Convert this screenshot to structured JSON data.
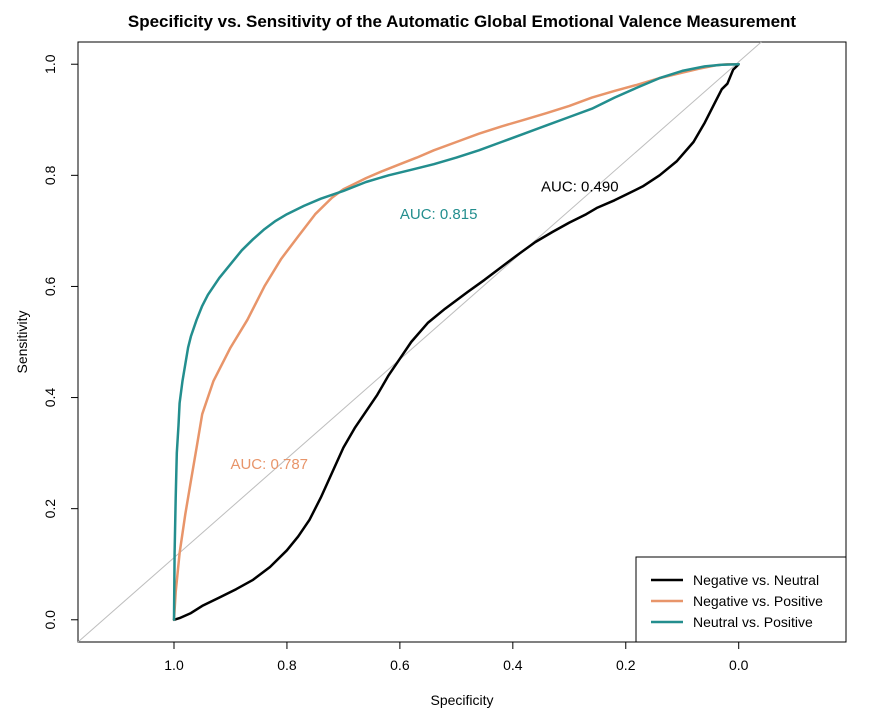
{
  "chart_data": {
    "type": "line",
    "title": "Specificity vs. Sensitivity of the Automatic Global Emotional Valence Measurement",
    "xlabel": "Specificity",
    "ylabel": "Sensitivity",
    "x_reversed": true,
    "xlim": [
      1.17,
      -0.19
    ],
    "ylim": [
      -0.04,
      1.04
    ],
    "x_ticks": [
      1.0,
      0.8,
      0.6,
      0.4,
      0.2,
      0.0
    ],
    "x_tick_labels": [
      "1.0",
      "0.8",
      "0.6",
      "0.4",
      "0.2",
      "0.0"
    ],
    "y_ticks": [
      0.0,
      0.2,
      0.4,
      0.6,
      0.8,
      1.0
    ],
    "y_tick_labels": [
      "0.0",
      "0.2",
      "0.4",
      "0.6",
      "0.8",
      "1.0"
    ],
    "grid": false,
    "reference_line": {
      "type": "diagonal",
      "color": "#bebebe"
    },
    "legend_position": "bottom-right",
    "series": [
      {
        "name": "Negative vs. Neutral",
        "color": "#000000",
        "auc_label": "AUC: 0.490",
        "auc_label_pos": [
          0.35,
          0.78
        ],
        "specificity": [
          1.0,
          0.99,
          0.97,
          0.95,
          0.92,
          0.89,
          0.86,
          0.83,
          0.8,
          0.78,
          0.76,
          0.74,
          0.72,
          0.7,
          0.68,
          0.66,
          0.64,
          0.62,
          0.6,
          0.58,
          0.55,
          0.52,
          0.48,
          0.45,
          0.42,
          0.39,
          0.36,
          0.33,
          0.3,
          0.27,
          0.25,
          0.22,
          0.2,
          0.17,
          0.14,
          0.11,
          0.08,
          0.06,
          0.04,
          0.03,
          0.02,
          0.01,
          0.0
        ],
        "sensitivity": [
          0.0,
          0.003,
          0.012,
          0.025,
          0.04,
          0.055,
          0.072,
          0.095,
          0.125,
          0.15,
          0.18,
          0.22,
          0.265,
          0.31,
          0.345,
          0.375,
          0.405,
          0.44,
          0.47,
          0.5,
          0.535,
          0.56,
          0.59,
          0.612,
          0.635,
          0.658,
          0.68,
          0.698,
          0.715,
          0.73,
          0.742,
          0.755,
          0.765,
          0.78,
          0.8,
          0.825,
          0.86,
          0.895,
          0.935,
          0.955,
          0.965,
          0.99,
          1.0
        ]
      },
      {
        "name": "Negative vs. Positive",
        "color": "#e8956a",
        "auc_label": "AUC: 0.787",
        "auc_label_pos": [
          0.9,
          0.28
        ],
        "specificity": [
          1.0,
          0.997,
          0.99,
          0.98,
          0.97,
          0.96,
          0.95,
          0.93,
          0.9,
          0.87,
          0.84,
          0.81,
          0.78,
          0.75,
          0.72,
          0.7,
          0.68,
          0.66,
          0.63,
          0.6,
          0.57,
          0.54,
          0.5,
          0.46,
          0.42,
          0.38,
          0.34,
          0.3,
          0.26,
          0.22,
          0.18,
          0.14,
          0.1,
          0.07,
          0.04,
          0.02,
          0.0
        ],
        "sensitivity": [
          0.0,
          0.05,
          0.12,
          0.19,
          0.25,
          0.31,
          0.37,
          0.43,
          0.49,
          0.54,
          0.6,
          0.65,
          0.69,
          0.73,
          0.76,
          0.775,
          0.785,
          0.795,
          0.808,
          0.82,
          0.832,
          0.845,
          0.86,
          0.875,
          0.888,
          0.9,
          0.912,
          0.925,
          0.94,
          0.952,
          0.963,
          0.975,
          0.985,
          0.992,
          0.998,
          1.0,
          1.0
        ]
      },
      {
        "name": "Neutral vs. Positive",
        "color": "#238e8e",
        "auc_label": "AUC: 0.815",
        "auc_label_pos": [
          0.6,
          0.73
        ],
        "specificity": [
          1.0,
          0.999,
          0.997,
          0.995,
          0.992,
          0.99,
          0.985,
          0.98,
          0.975,
          0.97,
          0.96,
          0.95,
          0.94,
          0.92,
          0.9,
          0.88,
          0.86,
          0.84,
          0.82,
          0.8,
          0.77,
          0.74,
          0.7,
          0.66,
          0.62,
          0.58,
          0.54,
          0.5,
          0.46,
          0.42,
          0.38,
          0.34,
          0.3,
          0.26,
          0.22,
          0.18,
          0.14,
          0.1,
          0.06,
          0.03,
          0.0
        ],
        "sensitivity": [
          0.0,
          0.12,
          0.22,
          0.3,
          0.35,
          0.39,
          0.43,
          0.46,
          0.49,
          0.51,
          0.54,
          0.565,
          0.585,
          0.615,
          0.64,
          0.665,
          0.685,
          0.703,
          0.718,
          0.73,
          0.745,
          0.758,
          0.772,
          0.788,
          0.8,
          0.81,
          0.82,
          0.832,
          0.845,
          0.86,
          0.875,
          0.89,
          0.905,
          0.92,
          0.94,
          0.958,
          0.975,
          0.988,
          0.996,
          0.999,
          1.0
        ]
      }
    ]
  }
}
